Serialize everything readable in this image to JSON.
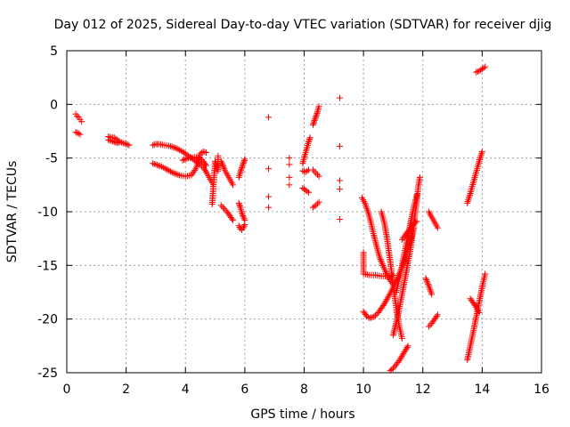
{
  "chart_data": {
    "type": "scatter",
    "title": "Day 012 of 2025, Sidereal Day-to-day VTEC variation (SDTVAR) for receiver djig",
    "xlabel": "GPS time / hours",
    "ylabel": "SDTVAR / TECUs",
    "xlim": [
      0,
      16
    ],
    "ylim": [
      -25,
      5
    ],
    "xticks": [
      0,
      2,
      4,
      6,
      8,
      10,
      12,
      14,
      16
    ],
    "yticks": [
      -25,
      -20,
      -15,
      -10,
      -5,
      0,
      5
    ],
    "xtick_labels": [
      "0",
      "2",
      "4",
      "6",
      "8",
      "10",
      "12",
      "14",
      "16"
    ],
    "ytick_labels": [
      "-25",
      "-20",
      "-15",
      "-10",
      "-5",
      "0",
      "5"
    ],
    "grid": true,
    "marker": "plus",
    "color": "#ff0000",
    "segments": [
      [
        [
          0.3,
          -0.9
        ],
        [
          0.35,
          -1.1
        ],
        [
          0.4,
          -1.2
        ],
        [
          0.45,
          -1.4
        ],
        [
          0.5,
          -1.6
        ]
      ],
      [
        [
          0.3,
          -2.6
        ],
        [
          0.4,
          -2.7
        ],
        [
          0.45,
          -2.8
        ]
      ],
      [
        [
          1.4,
          -3.0
        ],
        [
          1.5,
          -3.1
        ],
        [
          1.6,
          -3.1
        ],
        [
          1.7,
          -3.3
        ],
        [
          1.8,
          -3.5
        ],
        [
          1.9,
          -3.6
        ],
        [
          2.0,
          -3.7
        ],
        [
          2.1,
          -3.8
        ]
      ],
      [
        [
          1.4,
          -3.3
        ],
        [
          1.5,
          -3.4
        ],
        [
          1.6,
          -3.5
        ],
        [
          1.7,
          -3.6
        ],
        [
          1.8,
          -3.5
        ]
      ],
      [
        [
          2.9,
          -3.8
        ],
        [
          3.0,
          -3.7
        ],
        [
          3.1,
          -3.7
        ],
        [
          3.3,
          -3.8
        ],
        [
          3.5,
          -3.9
        ],
        [
          3.7,
          -4.1
        ],
        [
          3.9,
          -4.4
        ],
        [
          4.1,
          -4.8
        ],
        [
          4.3,
          -5.2
        ],
        [
          4.5,
          -5.6
        ],
        [
          4.6,
          -5.9
        ],
        [
          4.7,
          -6.3
        ],
        [
          4.8,
          -6.8
        ],
        [
          4.9,
          -7.3
        ]
      ],
      [
        [
          2.9,
          -5.5
        ],
        [
          3.0,
          -5.6
        ],
        [
          3.2,
          -5.8
        ],
        [
          3.4,
          -6.1
        ],
        [
          3.6,
          -6.4
        ],
        [
          3.8,
          -6.6
        ],
        [
          4.0,
          -6.7
        ],
        [
          4.2,
          -6.6
        ],
        [
          4.35,
          -6.0
        ],
        [
          4.45,
          -5.2
        ],
        [
          4.5,
          -4.6
        ],
        [
          4.6,
          -4.4
        ],
        [
          4.7,
          -4.5
        ]
      ],
      [
        [
          3.9,
          -5.2
        ],
        [
          4.1,
          -5.0
        ],
        [
          4.3,
          -4.9
        ],
        [
          4.5,
          -5.0
        ],
        [
          4.6,
          -5.3
        ],
        [
          4.7,
          -5.7
        ]
      ],
      [
        [
          4.9,
          -9.3
        ],
        [
          5.0,
          -5.3
        ],
        [
          5.1,
          -6.2
        ],
        [
          5.1,
          -4.8
        ]
      ],
      [
        [
          5.2,
          -5.3
        ],
        [
          5.25,
          -5.6
        ],
        [
          5.3,
          -6.0
        ],
        [
          5.4,
          -6.5
        ],
        [
          5.5,
          -7.0
        ],
        [
          5.6,
          -7.5
        ]
      ],
      [
        [
          5.2,
          -9.4
        ],
        [
          5.3,
          -9.7
        ],
        [
          5.4,
          -10.0
        ],
        [
          5.5,
          -10.4
        ],
        [
          5.6,
          -10.8
        ]
      ],
      [
        [
          5.8,
          -6.8
        ],
        [
          5.85,
          -6.3
        ],
        [
          5.9,
          -5.9
        ],
        [
          5.95,
          -5.5
        ],
        [
          6.0,
          -5.1
        ]
      ],
      [
        [
          5.8,
          -9.2
        ],
        [
          5.85,
          -9.6
        ],
        [
          5.9,
          -10.1
        ],
        [
          5.95,
          -10.5
        ],
        [
          6.0,
          -10.8
        ]
      ],
      [
        [
          5.8,
          -11.3
        ],
        [
          5.85,
          -11.6
        ],
        [
          5.9,
          -11.7
        ],
        [
          5.95,
          -11.5
        ],
        [
          6.0,
          -11.2
        ]
      ],
      [
        [
          6.8,
          -1.2
        ],
        [
          6.8,
          -6.0
        ],
        [
          6.8,
          -8.6
        ],
        [
          6.8,
          -9.6
        ]
      ],
      [
        [
          7.5,
          -5.0
        ],
        [
          7.5,
          -5.6
        ],
        [
          7.5,
          -6.8
        ],
        [
          7.5,
          -7.5
        ]
      ],
      [
        [
          7.95,
          -5.5
        ],
        [
          8.0,
          -5.0
        ],
        [
          8.05,
          -4.5
        ],
        [
          8.1,
          -4.0
        ],
        [
          8.15,
          -3.5
        ],
        [
          8.2,
          -3.1
        ]
      ],
      [
        [
          7.95,
          -6.2
        ],
        [
          8.05,
          -6.3
        ],
        [
          8.15,
          -6.1
        ]
      ],
      [
        [
          7.95,
          -7.8
        ],
        [
          8.05,
          -8.0
        ],
        [
          8.15,
          -8.2
        ]
      ],
      [
        [
          8.3,
          -1.9
        ],
        [
          8.35,
          -1.5
        ],
        [
          8.4,
          -1.1
        ],
        [
          8.45,
          -0.7
        ],
        [
          8.5,
          -0.2
        ]
      ],
      [
        [
          8.3,
          -6.1
        ],
        [
          8.4,
          -6.4
        ],
        [
          8.5,
          -6.7
        ]
      ],
      [
        [
          8.3,
          -9.6
        ],
        [
          8.4,
          -9.4
        ],
        [
          8.5,
          -9.1
        ]
      ],
      [
        [
          9.2,
          0.6
        ],
        [
          9.2,
          -3.9
        ],
        [
          9.2,
          -7.1
        ],
        [
          9.2,
          -7.9
        ],
        [
          9.2,
          -10.7
        ]
      ],
      [
        [
          9.95,
          -8.7
        ],
        [
          10.05,
          -9.2
        ],
        [
          10.15,
          -10.0
        ],
        [
          10.25,
          -11.0
        ],
        [
          10.35,
          -12.2
        ],
        [
          10.45,
          -13.3
        ],
        [
          10.55,
          -14.3
        ],
        [
          10.7,
          -15.3
        ],
        [
          10.85,
          -16.2
        ],
        [
          11.0,
          -16.8
        ]
      ],
      [
        [
          10.0,
          -13.8
        ],
        [
          10.0,
          -15.8
        ],
        [
          10.2,
          -15.9
        ],
        [
          10.4,
          -15.9
        ],
        [
          10.6,
          -16.0
        ],
        [
          10.8,
          -16.0
        ],
        [
          11.0,
          -15.9
        ]
      ],
      [
        [
          10.0,
          -19.3
        ],
        [
          10.1,
          -19.7
        ],
        [
          10.2,
          -19.9
        ],
        [
          10.35,
          -19.8
        ],
        [
          10.5,
          -19.4
        ],
        [
          10.7,
          -18.6
        ],
        [
          10.9,
          -17.6
        ],
        [
          11.1,
          -16.5
        ],
        [
          11.3,
          -15.2
        ],
        [
          11.45,
          -14.0
        ],
        [
          11.6,
          -12.6
        ],
        [
          11.7,
          -11.5
        ]
      ],
      [
        [
          10.6,
          -10.0
        ],
        [
          10.7,
          -11.0
        ],
        [
          10.8,
          -12.6
        ],
        [
          10.9,
          -14.6
        ],
        [
          11.0,
          -16.8
        ],
        [
          11.1,
          -18.9
        ],
        [
          11.2,
          -20.6
        ],
        [
          11.3,
          -21.8
        ]
      ],
      [
        [
          10.9,
          -24.8
        ],
        [
          11.0,
          -24.6
        ],
        [
          11.2,
          -23.9
        ],
        [
          11.35,
          -23.2
        ],
        [
          11.5,
          -22.5
        ]
      ],
      [
        [
          11.0,
          -21.5
        ],
        [
          11.15,
          -19.8
        ],
        [
          11.3,
          -17.7
        ],
        [
          11.45,
          -15.5
        ],
        [
          11.6,
          -13.2
        ],
        [
          11.7,
          -11.0
        ],
        [
          11.8,
          -9.0
        ],
        [
          11.85,
          -7.6
        ],
        [
          11.9,
          -6.8
        ]
      ],
      [
        [
          11.1,
          -17.5
        ],
        [
          11.2,
          -16.3
        ],
        [
          11.3,
          -15.0
        ],
        [
          11.4,
          -13.6
        ],
        [
          11.5,
          -12.2
        ],
        [
          11.6,
          -10.8
        ],
        [
          11.7,
          -9.5
        ],
        [
          11.8,
          -8.4
        ]
      ],
      [
        [
          11.3,
          -12.6
        ],
        [
          11.45,
          -12.0
        ],
        [
          11.6,
          -11.5
        ],
        [
          11.7,
          -11.1
        ],
        [
          11.8,
          -10.9
        ]
      ],
      [
        [
          12.2,
          -10.0
        ],
        [
          12.3,
          -10.5
        ],
        [
          12.4,
          -11.0
        ],
        [
          12.5,
          -11.5
        ]
      ],
      [
        [
          12.1,
          -16.2
        ],
        [
          12.2,
          -16.9
        ],
        [
          12.3,
          -17.7
        ]
      ],
      [
        [
          12.2,
          -20.7
        ],
        [
          12.3,
          -20.4
        ],
        [
          12.4,
          -20.0
        ],
        [
          12.5,
          -19.6
        ]
      ],
      [
        [
          13.5,
          -9.2
        ],
        [
          13.6,
          -8.3
        ],
        [
          13.7,
          -7.3
        ],
        [
          13.8,
          -6.3
        ],
        [
          13.9,
          -5.3
        ],
        [
          14.0,
          -4.4
        ]
      ],
      [
        [
          13.5,
          -23.8
        ],
        [
          13.6,
          -22.5
        ],
        [
          13.7,
          -21.2
        ],
        [
          13.8,
          -19.8
        ],
        [
          13.9,
          -18.4
        ],
        [
          14.0,
          -17.0
        ],
        [
          14.1,
          -15.8
        ]
      ],
      [
        [
          13.6,
          -18.1
        ],
        [
          13.7,
          -18.5
        ],
        [
          13.8,
          -18.9
        ],
        [
          13.9,
          -19.4
        ]
      ],
      [
        [
          13.8,
          3.0
        ],
        [
          13.9,
          3.1
        ],
        [
          14.0,
          3.3
        ],
        [
          14.1,
          3.5
        ]
      ]
    ]
  }
}
